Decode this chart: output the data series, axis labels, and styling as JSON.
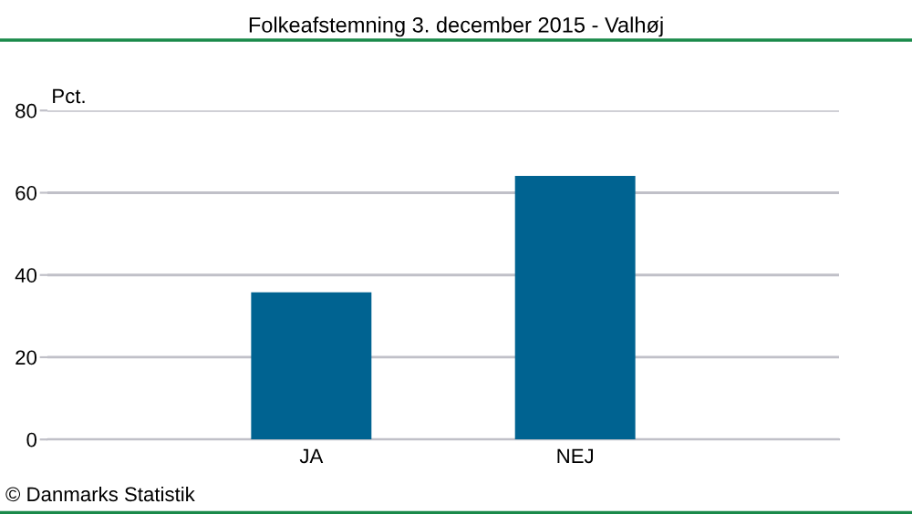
{
  "chart_data": {
    "type": "bar",
    "title": "Folkeafstemning 3. december 2015 - Valhøj",
    "ylabel": "Pct.",
    "categories": [
      "JA",
      "NEJ"
    ],
    "values": [
      35.8,
      64.1
    ],
    "color": "#006391",
    "ylim": [
      0,
      80
    ],
    "yticks": [
      0,
      20,
      40,
      60,
      80
    ],
    "grid": "y",
    "annotations": [
      "© Danmarks Statistik"
    ]
  }
}
